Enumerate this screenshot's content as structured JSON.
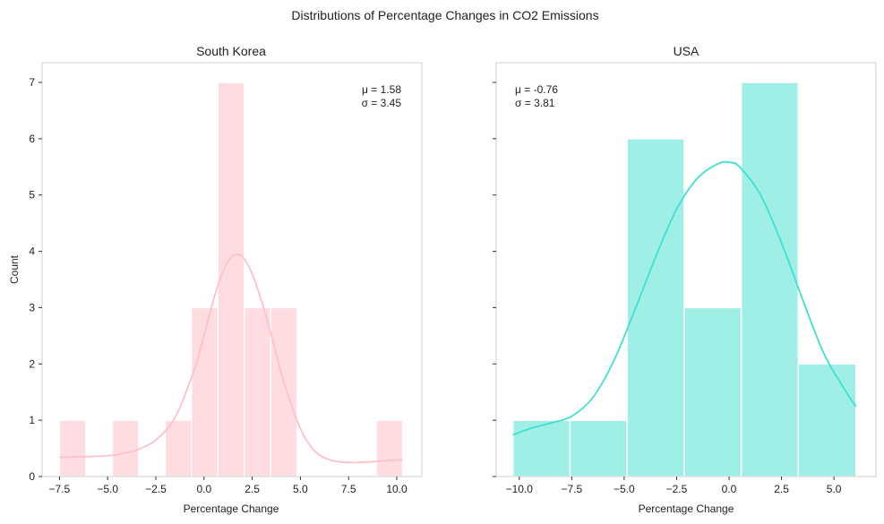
{
  "figure": {
    "suptitle": "Distributions of Percentage Changes in CO2 Emissions"
  },
  "chart_data": [
    {
      "type": "histogram",
      "title": "South Korea",
      "xlabel": "Percentage Change",
      "ylabel": "Count",
      "color": "#FFC0CB",
      "bar_opacity": 0.55,
      "xlim": [
        -8.4,
        11.3
      ],
      "ylim": [
        0,
        7.35
      ],
      "xticks": [
        -7.5,
        -5.0,
        -2.5,
        0.0,
        2.5,
        5.0,
        7.5,
        10.0
      ],
      "xtick_labels": [
        "−7.5",
        "−5.0",
        "−2.5",
        "0.0",
        "2.5",
        "5.0",
        "7.5",
        "10.0"
      ],
      "yticks": [
        0,
        1,
        2,
        3,
        4,
        5,
        6,
        7
      ],
      "ytick_labels": [
        "0",
        "1",
        "2",
        "3",
        "4",
        "5",
        "6",
        "7"
      ],
      "bins": [
        {
          "x0": -7.5,
          "x1": -6.13,
          "count": 1
        },
        {
          "x0": -6.13,
          "x1": -4.76,
          "count": 0
        },
        {
          "x0": -4.76,
          "x1": -3.39,
          "count": 1
        },
        {
          "x0": -3.39,
          "x1": -2.02,
          "count": 0
        },
        {
          "x0": -2.02,
          "x1": -0.65,
          "count": 1
        },
        {
          "x0": -0.65,
          "x1": 0.72,
          "count": 3
        },
        {
          "x0": 0.72,
          "x1": 2.09,
          "count": 7
        },
        {
          "x0": 2.09,
          "x1": 3.46,
          "count": 3
        },
        {
          "x0": 3.46,
          "x1": 4.83,
          "count": 3
        },
        {
          "x0": 4.83,
          "x1": 6.2,
          "count": 0
        },
        {
          "x0": 6.2,
          "x1": 7.57,
          "count": 0
        },
        {
          "x0": 7.57,
          "x1": 8.94,
          "count": 0
        },
        {
          "x0": 8.94,
          "x1": 10.31,
          "count": 1
        }
      ],
      "kde": {
        "color": "#FFC0CB",
        "x": [
          -7.5,
          -6.5,
          -5.5,
          -4.5,
          -3.5,
          -2.5,
          -1.5,
          -0.5,
          0.0,
          0.5,
          1.0,
          1.5,
          2.0,
          2.5,
          3.0,
          3.5,
          4.0,
          4.5,
          5.0,
          5.5,
          6.0,
          6.5,
          7.0,
          7.5,
          8.0,
          9.0,
          10.31
        ],
        "y": [
          0.34,
          0.35,
          0.36,
          0.39,
          0.47,
          0.65,
          1.05,
          1.9,
          2.5,
          3.15,
          3.65,
          3.92,
          3.9,
          3.6,
          3.1,
          2.5,
          1.85,
          1.3,
          0.85,
          0.55,
          0.38,
          0.3,
          0.26,
          0.25,
          0.25,
          0.27,
          0.3
        ]
      },
      "annotation": {
        "lines": [
          "μ = 1.58",
          "σ = 3.45"
        ],
        "position": "top-right"
      }
    },
    {
      "type": "histogram",
      "title": "USA",
      "xlabel": "Percentage Change",
      "ylabel": "",
      "color": "#40E0D0",
      "bar_opacity": 0.5,
      "xlim": [
        -11.1,
        7.0
      ],
      "ylim": [
        0,
        7.35
      ],
      "xticks": [
        -10.0,
        -7.5,
        -5.0,
        -2.5,
        0.0,
        2.5,
        5.0
      ],
      "xtick_labels": [
        "−10.0",
        "−7.5",
        "−5.0",
        "−2.5",
        "0.0",
        "2.5",
        "5.0"
      ],
      "yticks": [
        0,
        1,
        2,
        3,
        4,
        5,
        6,
        7
      ],
      "ytick_labels": [],
      "bins": [
        {
          "x0": -10.3,
          "x1": -7.58,
          "count": 1
        },
        {
          "x0": -7.58,
          "x1": -4.86,
          "count": 1
        },
        {
          "x0": -4.86,
          "x1": -2.14,
          "count": 6
        },
        {
          "x0": -2.14,
          "x1": 0.58,
          "count": 3
        },
        {
          "x0": 0.58,
          "x1": 3.3,
          "count": 7
        },
        {
          "x0": 3.3,
          "x1": 6.05,
          "count": 2
        }
      ],
      "kde": {
        "color": "#40E0D0",
        "x": [
          -10.3,
          -9.5,
          -8.5,
          -7.5,
          -6.5,
          -5.5,
          -4.5,
          -3.5,
          -2.5,
          -1.5,
          -0.5,
          0.0,
          0.5,
          1.5,
          2.5,
          3.5,
          4.5,
          5.5,
          6.05
        ],
        "y": [
          0.74,
          0.85,
          0.95,
          1.07,
          1.4,
          2.05,
          2.95,
          3.9,
          4.75,
          5.3,
          5.56,
          5.58,
          5.5,
          5.0,
          4.15,
          3.15,
          2.2,
          1.55,
          1.24
        ]
      },
      "annotation": {
        "lines": [
          "μ = -0.76",
          "σ = 3.81"
        ],
        "position": "top-left"
      }
    }
  ]
}
